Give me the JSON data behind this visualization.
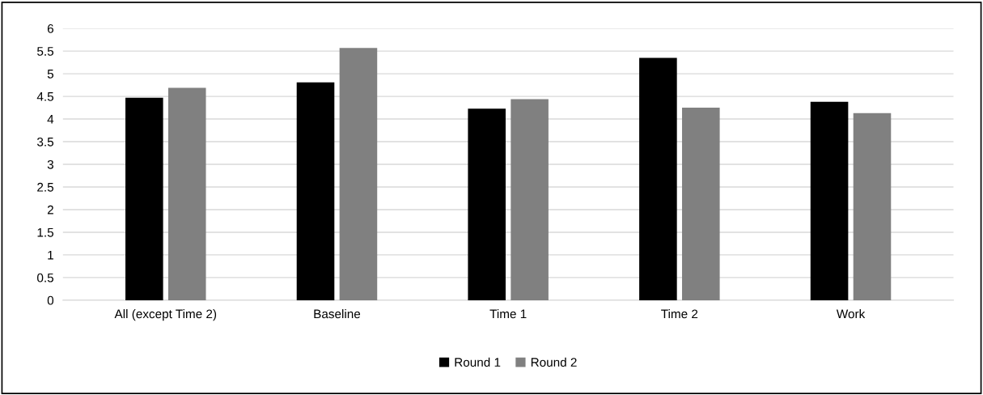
{
  "chart_data": {
    "type": "bar",
    "categories": [
      "All (except Time 2)",
      "Baseline",
      "Time 1",
      "Time 2",
      "Work"
    ],
    "series": [
      {
        "name": "Round 1",
        "color": "#000000",
        "values": [
          4.47,
          4.81,
          4.23,
          5.35,
          4.38
        ]
      },
      {
        "name": "Round 2",
        "color": "#808080",
        "values": [
          4.69,
          5.57,
          4.44,
          4.25,
          4.13
        ]
      }
    ],
    "ylim": [
      0,
      6
    ],
    "yticks": [
      0,
      0.5,
      1,
      1.5,
      2,
      2.5,
      3,
      3.5,
      4,
      4.5,
      5,
      5.5,
      6
    ],
    "grid": "y",
    "legend": "bottom"
  }
}
